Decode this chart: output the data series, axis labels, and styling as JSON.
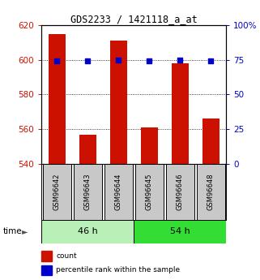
{
  "title": "GDS2233 / 1421118_a_at",
  "samples": [
    "GSM96642",
    "GSM96643",
    "GSM96644",
    "GSM96645",
    "GSM96646",
    "GSM96648"
  ],
  "counts": [
    615,
    557,
    611,
    561,
    598,
    566
  ],
  "percentiles": [
    74.5,
    74.3,
    74.6,
    74.2,
    75.0,
    74.3
  ],
  "ylim_left": [
    540,
    620
  ],
  "ylim_right": [
    0,
    100
  ],
  "yticks_left": [
    540,
    560,
    580,
    600,
    620
  ],
  "yticks_right": [
    0,
    25,
    50,
    75,
    100
  ],
  "groups": [
    {
      "label": "46 h",
      "indices": [
        0,
        1,
        2
      ],
      "color": "#b8f0b8"
    },
    {
      "label": "54 h",
      "indices": [
        3,
        4,
        5
      ],
      "color": "#33dd33"
    }
  ],
  "bar_color": "#cc1100",
  "blue_color": "#0000cc",
  "grid_color": "#000000",
  "bg_color": "#ffffff",
  "tick_box_color": "#c8c8c8",
  "left_axis_color": "#cc1100",
  "right_axis_color": "#0000cc",
  "grid_dotted_at": [
    560,
    580,
    600
  ],
  "legend": [
    {
      "color": "#cc1100",
      "label": "count"
    },
    {
      "color": "#0000cc",
      "label": "percentile rank within the sample"
    }
  ]
}
